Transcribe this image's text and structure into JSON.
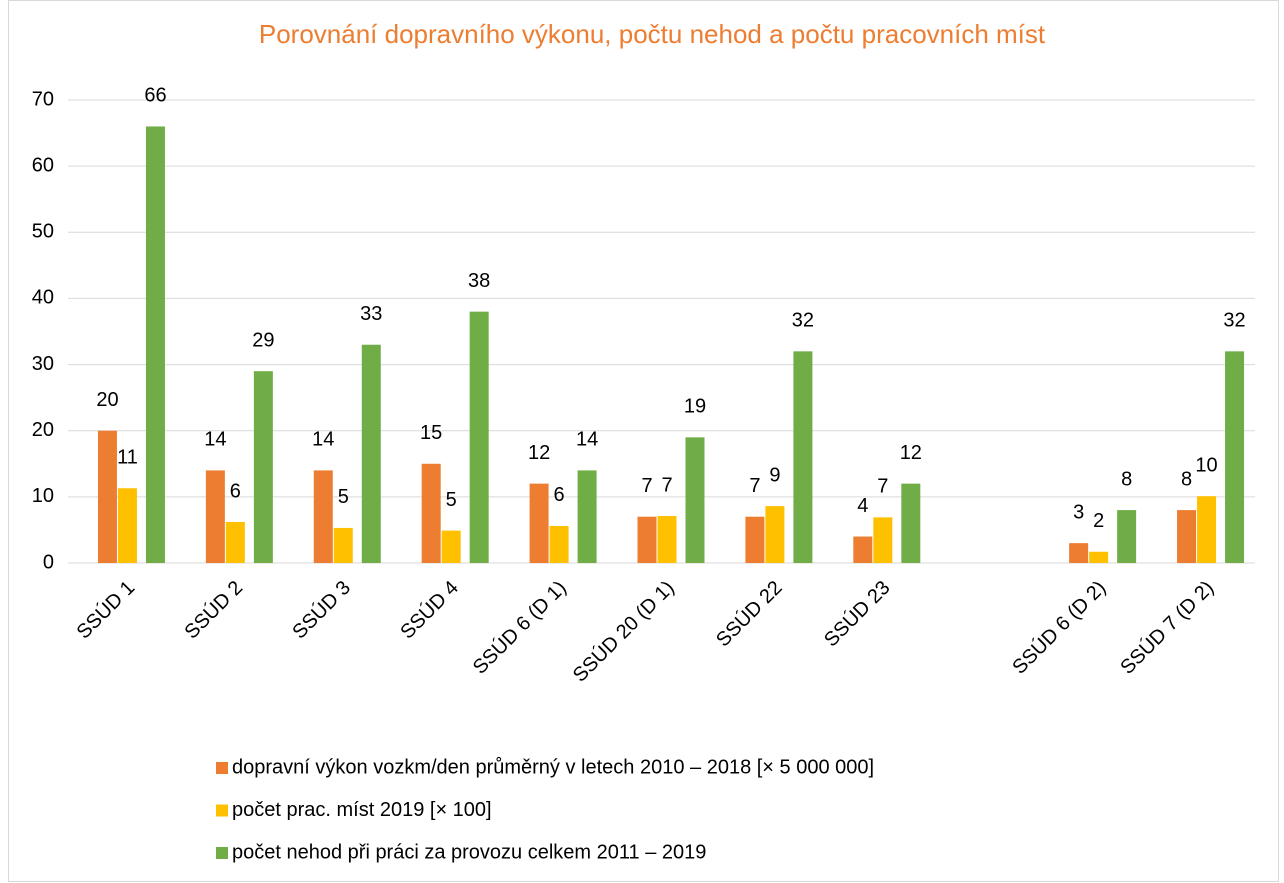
{
  "chart_data": {
    "type": "bar",
    "title": "Porovnání dopravního výkonu, počtu nehod a počtu pracovních míst",
    "categories": [
      "SSÚD 1",
      "SSÚD 2",
      "SSÚD 3",
      "SSÚD 4",
      "SSÚD 6 (D 1)",
      "SSÚD 20 (D 1)",
      "SSÚD 22",
      "SSÚD 23",
      null,
      "SSÚD 6 (D 2)",
      "SSÚD 7 (D 2)"
    ],
    "series": [
      {
        "name": "dopravní výkon vozkm/den průměrný v letech 2010 – 2018 [× 5 000 000]",
        "color": "#ed7d31",
        "values": [
          20,
          14,
          14,
          15,
          12,
          7,
          7,
          4,
          null,
          3,
          8
        ]
      },
      {
        "name": "počet prac. míst 2019 [× 100]",
        "color": "#ffc000",
        "values": [
          11.3,
          6.2,
          5.3,
          4.9,
          5.6,
          7.1,
          8.6,
          6.9,
          null,
          1.7,
          10.1
        ],
        "value_labels": [
          "11",
          "6",
          "5",
          "5",
          "6",
          "7",
          "9",
          "7",
          null,
          "2",
          "10"
        ]
      },
      {
        "name": "počet nehod při práci za provozu celkem 2011 – 2019",
        "color": "#70ad47",
        "values": [
          66,
          29,
          33,
          38,
          14,
          19,
          32,
          12,
          null,
          8,
          32
        ]
      }
    ],
    "ylim": [
      0,
      70
    ],
    "yticks": [
      0,
      10,
      20,
      30,
      40,
      50,
      60,
      70
    ],
    "grid": true,
    "legend": "bottom"
  }
}
